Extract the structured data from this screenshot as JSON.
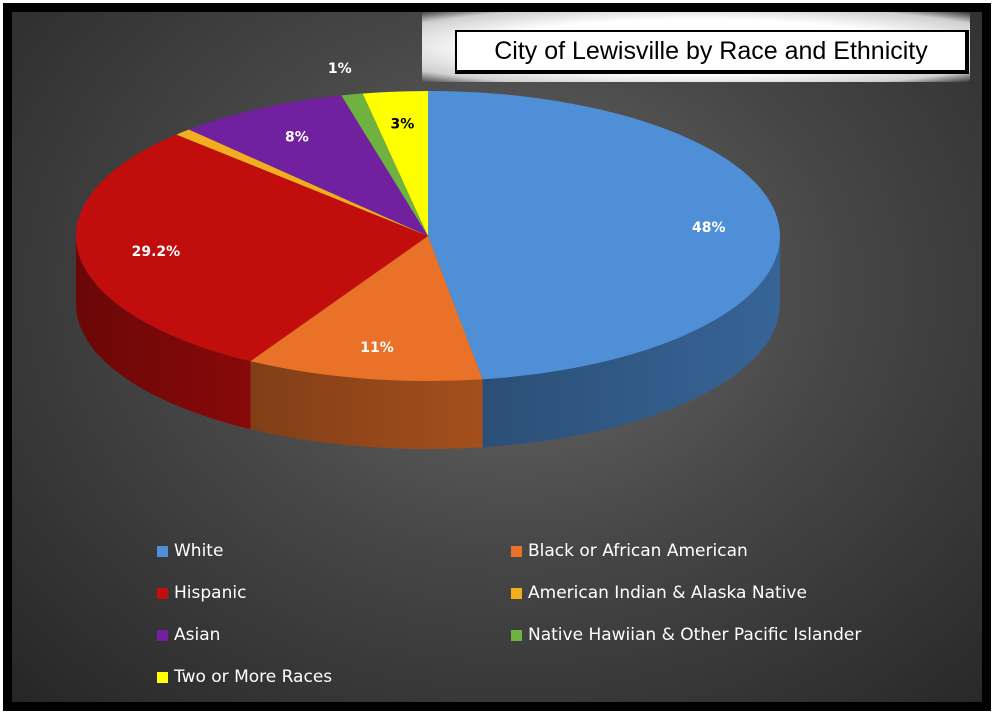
{
  "chart_data": {
    "type": "pie",
    "title": "City of Lewisville by Race and Ethnicity",
    "series": [
      {
        "name": "White",
        "value": 48,
        "label": "48%",
        "color": "#4f8fd7"
      },
      {
        "name": "Black or African American",
        "value": 11,
        "label": "11%",
        "color": "#ea7128"
      },
      {
        "name": "Hispanic",
        "value": 29.2,
        "label": "29.2%",
        "color": "#c20d0d"
      },
      {
        "name": "American Indian & Alaska Native",
        "value": 0.8,
        "label": "",
        "color": "#f3ae1f"
      },
      {
        "name": "Asian",
        "value": 8,
        "label": "8%",
        "color": "#7120a0"
      },
      {
        "name": "Native Hawiian & Other Pacific Islander",
        "value": 1,
        "label": "1%",
        "color": "#6fb23f"
      },
      {
        "name": "Two or More Races",
        "value": 3,
        "label": "3%",
        "color": "#ffff00"
      }
    ],
    "legend_position": "bottom"
  }
}
